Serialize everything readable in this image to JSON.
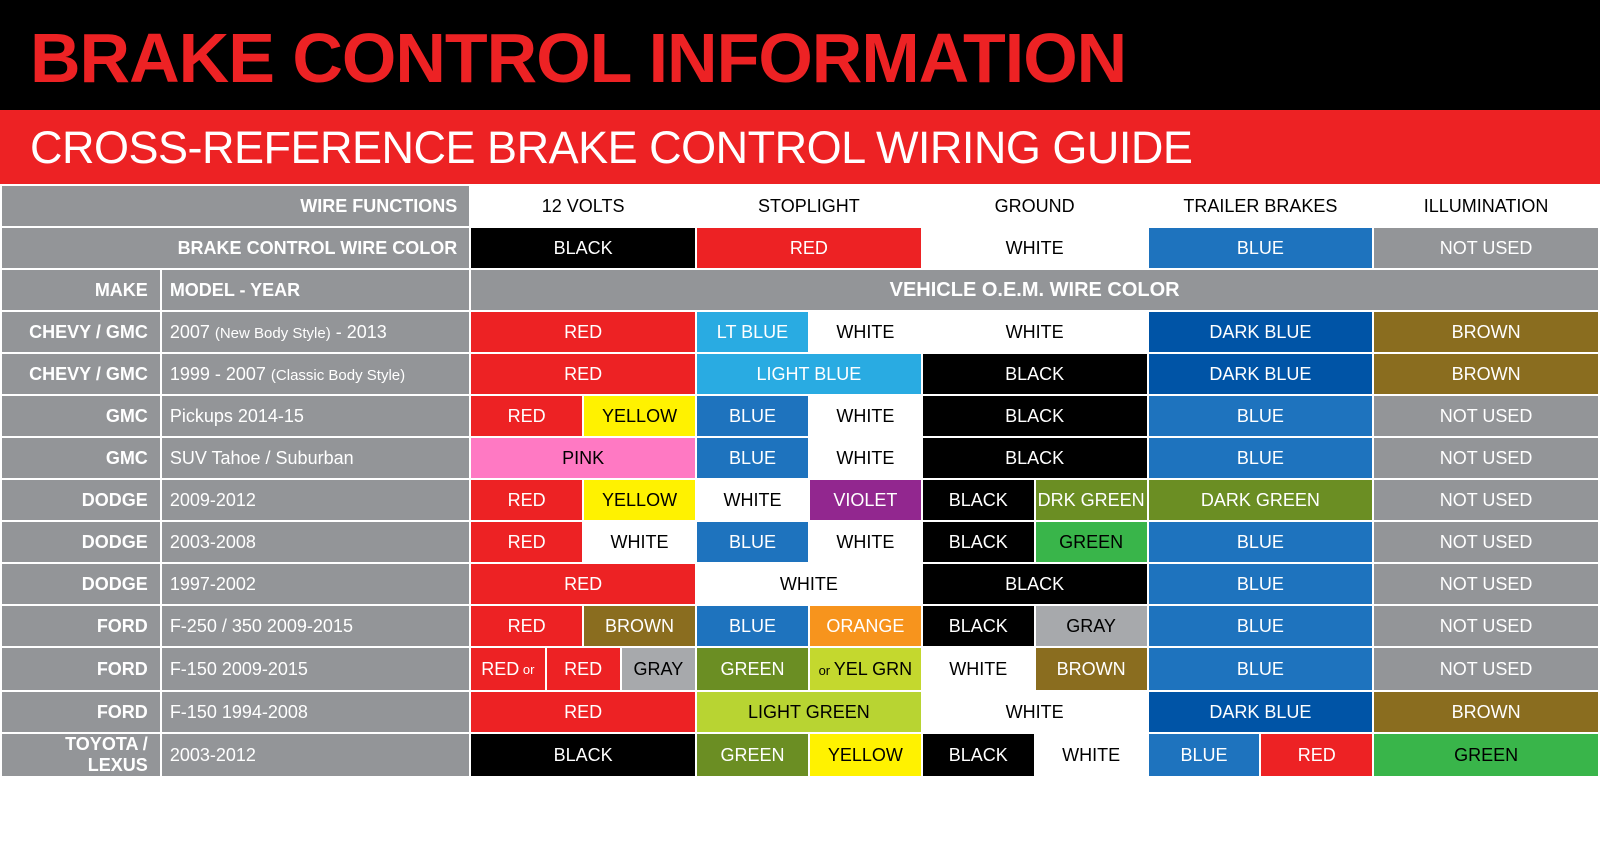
{
  "title": "BRAKE CONTROL INFORMATION",
  "subtitle": "CROSS-REFERENCE BRAKE CONTROL WIRING GUIDE",
  "colors": {
    "red": "#ed2224",
    "black": "#000000",
    "white": "#ffffff",
    "gray": "#939598",
    "blue": "#1e73be",
    "ltblue": "#29abe2",
    "brown": "#8a6d1f",
    "yellow": "#fff200",
    "pink": "#ff79c3",
    "violet": "#92278f",
    "drkgreen": "#6b8e23",
    "green": "#39b54a",
    "orange": "#f7941d",
    "yelgrn": "#c4d82e",
    "darkblue": "#0054a6",
    "ltgreen": "#b8d432",
    "graycell": "#a7a9ac"
  },
  "header_row": {
    "label": "WIRE FUNCTIONS",
    "cols": [
      "12 VOLTS",
      "STOPLIGHT",
      "GROUND",
      "TRAILER BRAKES",
      "ILLUMINATION"
    ]
  },
  "wirecolor_row": {
    "label": "BRAKE CONTROL WIRE COLOR",
    "cells": [
      {
        "t": "BLACK",
        "bg": "black",
        "fg": "white"
      },
      {
        "t": "RED",
        "bg": "red",
        "fg": "white"
      },
      {
        "t": "WHITE",
        "bg": "white",
        "fg": "black"
      },
      {
        "t": "BLUE",
        "bg": "blue",
        "fg": "white"
      },
      {
        "t": "NOT USED",
        "bg": "gray",
        "fg": "white"
      }
    ]
  },
  "subhead": {
    "make": "MAKE",
    "model": "MODEL - YEAR",
    "oem": "VEHICLE O.E.M.   WIRE COLOR"
  },
  "rows": [
    {
      "make": "CHEVY / GMC",
      "model": "2007 (New Body Style) - 2013",
      "c": [
        [
          {
            "t": "RED",
            "bg": "red",
            "fg": "white",
            "w": 2
          }
        ],
        [
          {
            "t": "LT BLUE",
            "bg": "ltblue",
            "fg": "white",
            "w": 1
          },
          {
            "t": "WHITE",
            "bg": "white",
            "fg": "black",
            "w": 1
          }
        ],
        [
          {
            "t": "WHITE",
            "bg": "white",
            "fg": "black",
            "w": 2
          }
        ],
        [
          {
            "t": "DARK BLUE",
            "bg": "darkblue",
            "fg": "white",
            "w": 2
          }
        ],
        [
          {
            "t": "BROWN",
            "bg": "brown",
            "fg": "white",
            "w": 2
          }
        ]
      ]
    },
    {
      "make": "CHEVY / GMC",
      "model": "1999 - 2007 (Classic Body Style)",
      "c": [
        [
          {
            "t": "RED",
            "bg": "red",
            "fg": "white",
            "w": 2
          }
        ],
        [
          {
            "t": "LIGHT BLUE",
            "bg": "ltblue",
            "fg": "white",
            "w": 2
          }
        ],
        [
          {
            "t": "BLACK",
            "bg": "black",
            "fg": "white",
            "w": 2
          }
        ],
        [
          {
            "t": "DARK BLUE",
            "bg": "darkblue",
            "fg": "white",
            "w": 2
          }
        ],
        [
          {
            "t": "BROWN",
            "bg": "brown",
            "fg": "white",
            "w": 2
          }
        ]
      ]
    },
    {
      "make": "GMC",
      "model": "Pickups 2014-15",
      "c": [
        [
          {
            "t": "RED",
            "bg": "red",
            "fg": "white",
            "w": 1
          },
          {
            "t": "YELLOW",
            "bg": "yellow",
            "fg": "black",
            "w": 1
          }
        ],
        [
          {
            "t": "BLUE",
            "bg": "blue",
            "fg": "white",
            "w": 1
          },
          {
            "t": "WHITE",
            "bg": "white",
            "fg": "black",
            "w": 1
          }
        ],
        [
          {
            "t": "BLACK",
            "bg": "black",
            "fg": "white",
            "w": 2
          }
        ],
        [
          {
            "t": "BLUE",
            "bg": "blue",
            "fg": "white",
            "w": 2
          }
        ],
        [
          {
            "t": "NOT USED",
            "bg": "gray",
            "fg": "white",
            "w": 2
          }
        ]
      ]
    },
    {
      "make": "GMC",
      "model": "SUV Tahoe / Suburban",
      "c": [
        [
          {
            "t": "PINK",
            "bg": "pink",
            "fg": "black",
            "w": 2
          }
        ],
        [
          {
            "t": "BLUE",
            "bg": "blue",
            "fg": "white",
            "w": 1
          },
          {
            "t": "WHITE",
            "bg": "white",
            "fg": "black",
            "w": 1
          }
        ],
        [
          {
            "t": "BLACK",
            "bg": "black",
            "fg": "white",
            "w": 2
          }
        ],
        [
          {
            "t": "BLUE",
            "bg": "blue",
            "fg": "white",
            "w": 2
          }
        ],
        [
          {
            "t": "NOT USED",
            "bg": "gray",
            "fg": "white",
            "w": 2
          }
        ]
      ]
    },
    {
      "make": "DODGE",
      "model": "2009-2012",
      "c": [
        [
          {
            "t": "RED",
            "bg": "red",
            "fg": "white",
            "w": 1
          },
          {
            "t": "YELLOW",
            "bg": "yellow",
            "fg": "black",
            "w": 1
          }
        ],
        [
          {
            "t": "WHITE",
            "bg": "white",
            "fg": "black",
            "w": 1
          },
          {
            "t": "VIOLET",
            "bg": "violet",
            "fg": "white",
            "w": 1
          }
        ],
        [
          {
            "t": "BLACK",
            "bg": "black",
            "fg": "white",
            "w": 1
          },
          {
            "t": "DRK GREEN",
            "bg": "drkgreen",
            "fg": "white",
            "w": 1
          }
        ],
        [
          {
            "t": "DARK GREEN",
            "bg": "drkgreen",
            "fg": "white",
            "w": 2
          }
        ],
        [
          {
            "t": "NOT USED",
            "bg": "gray",
            "fg": "white",
            "w": 2
          }
        ]
      ]
    },
    {
      "make": "DODGE",
      "model": "2003-2008",
      "c": [
        [
          {
            "t": "RED",
            "bg": "red",
            "fg": "white",
            "w": 1
          },
          {
            "t": "WHITE",
            "bg": "white",
            "fg": "black",
            "w": 1
          }
        ],
        [
          {
            "t": "BLUE",
            "bg": "blue",
            "fg": "white",
            "w": 1
          },
          {
            "t": "WHITE",
            "bg": "white",
            "fg": "black",
            "w": 1
          }
        ],
        [
          {
            "t": "BLACK",
            "bg": "black",
            "fg": "white",
            "w": 1
          },
          {
            "t": "GREEN",
            "bg": "green",
            "fg": "black",
            "w": 1
          }
        ],
        [
          {
            "t": "BLUE",
            "bg": "blue",
            "fg": "white",
            "w": 2
          }
        ],
        [
          {
            "t": "NOT USED",
            "bg": "gray",
            "fg": "white",
            "w": 2
          }
        ]
      ]
    },
    {
      "make": "DODGE",
      "model": "1997-2002",
      "c": [
        [
          {
            "t": "RED",
            "bg": "red",
            "fg": "white",
            "w": 2
          }
        ],
        [
          {
            "t": "WHITE",
            "bg": "white",
            "fg": "black",
            "w": 2
          }
        ],
        [
          {
            "t": "BLACK",
            "bg": "black",
            "fg": "white",
            "w": 2
          }
        ],
        [
          {
            "t": "BLUE",
            "bg": "blue",
            "fg": "white",
            "w": 2
          }
        ],
        [
          {
            "t": "NOT USED",
            "bg": "gray",
            "fg": "white",
            "w": 2
          }
        ]
      ]
    },
    {
      "make": "FORD",
      "model": "F-250 / 350 2009-2015",
      "c": [
        [
          {
            "t": "RED",
            "bg": "red",
            "fg": "white",
            "w": 1
          },
          {
            "t": "BROWN",
            "bg": "brown",
            "fg": "white",
            "w": 1
          }
        ],
        [
          {
            "t": "BLUE",
            "bg": "blue",
            "fg": "white",
            "w": 1
          },
          {
            "t": "ORANGE",
            "bg": "orange",
            "fg": "white",
            "w": 1
          }
        ],
        [
          {
            "t": "BLACK",
            "bg": "black",
            "fg": "white",
            "w": 1
          },
          {
            "t": "GRAY",
            "bg": "graycell",
            "fg": "black",
            "w": 1
          }
        ],
        [
          {
            "t": "BLUE",
            "bg": "blue",
            "fg": "white",
            "w": 2
          }
        ],
        [
          {
            "t": "NOT USED",
            "bg": "gray",
            "fg": "white",
            "w": 2
          }
        ]
      ]
    },
    {
      "make": "FORD",
      "model": "F-150 2009-2015",
      "c": [
        [
          {
            "t": "RED or",
            "bg": "red",
            "fg": "white",
            "w": 1,
            "split": [
              {
                "t": "RED",
                "bg": "red",
                "fg": "white"
              },
              {
                "t": "GRAY",
                "bg": "graycell",
                "fg": "black"
              }
            ]
          }
        ],
        [
          {
            "t": "GREEN",
            "bg": "drkgreen",
            "fg": "white",
            "w": 1
          },
          {
            "t": "or YEL GRN",
            "bg": "yelgrn",
            "fg": "black",
            "w": 1
          }
        ],
        [
          {
            "t": "WHITE",
            "bg": "white",
            "fg": "black",
            "w": 1
          },
          {
            "t": "BROWN",
            "bg": "brown",
            "fg": "white",
            "w": 1
          }
        ],
        [
          {
            "t": "BLUE",
            "bg": "blue",
            "fg": "white",
            "w": 2
          }
        ],
        [
          {
            "t": "NOT USED",
            "bg": "gray",
            "fg": "white",
            "w": 2
          }
        ]
      ]
    },
    {
      "make": "FORD",
      "model": "F-150 1994-2008",
      "c": [
        [
          {
            "t": "RED",
            "bg": "red",
            "fg": "white",
            "w": 2
          }
        ],
        [
          {
            "t": "LIGHT GREEN",
            "bg": "ltgreen",
            "fg": "black",
            "w": 2
          }
        ],
        [
          {
            "t": "WHITE",
            "bg": "white",
            "fg": "black",
            "w": 2
          }
        ],
        [
          {
            "t": "DARK BLUE",
            "bg": "darkblue",
            "fg": "white",
            "w": 2
          }
        ],
        [
          {
            "t": "BROWN",
            "bg": "brown",
            "fg": "white",
            "w": 2
          }
        ]
      ]
    },
    {
      "make": "TOYOTA / LEXUS",
      "model": "2003-2012",
      "c": [
        [
          {
            "t": "BLACK",
            "bg": "black",
            "fg": "white",
            "w": 2
          }
        ],
        [
          {
            "t": "GREEN",
            "bg": "drkgreen",
            "fg": "white",
            "w": 1
          },
          {
            "t": "YELLOW",
            "bg": "yellow",
            "fg": "black",
            "w": 1
          }
        ],
        [
          {
            "t": "BLACK",
            "bg": "black",
            "fg": "white",
            "w": 1
          },
          {
            "t": "WHITE",
            "bg": "white",
            "fg": "black",
            "w": 1
          }
        ],
        [
          {
            "t": "BLUE",
            "bg": "blue",
            "fg": "white",
            "w": 1
          },
          {
            "t": "RED",
            "bg": "red",
            "fg": "white",
            "w": 1
          }
        ],
        [
          {
            "t": "GREEN",
            "bg": "green",
            "fg": "black",
            "w": 2
          }
        ]
      ]
    }
  ],
  "col_widths": {
    "make": 160,
    "model": 310,
    "half": 113
  }
}
